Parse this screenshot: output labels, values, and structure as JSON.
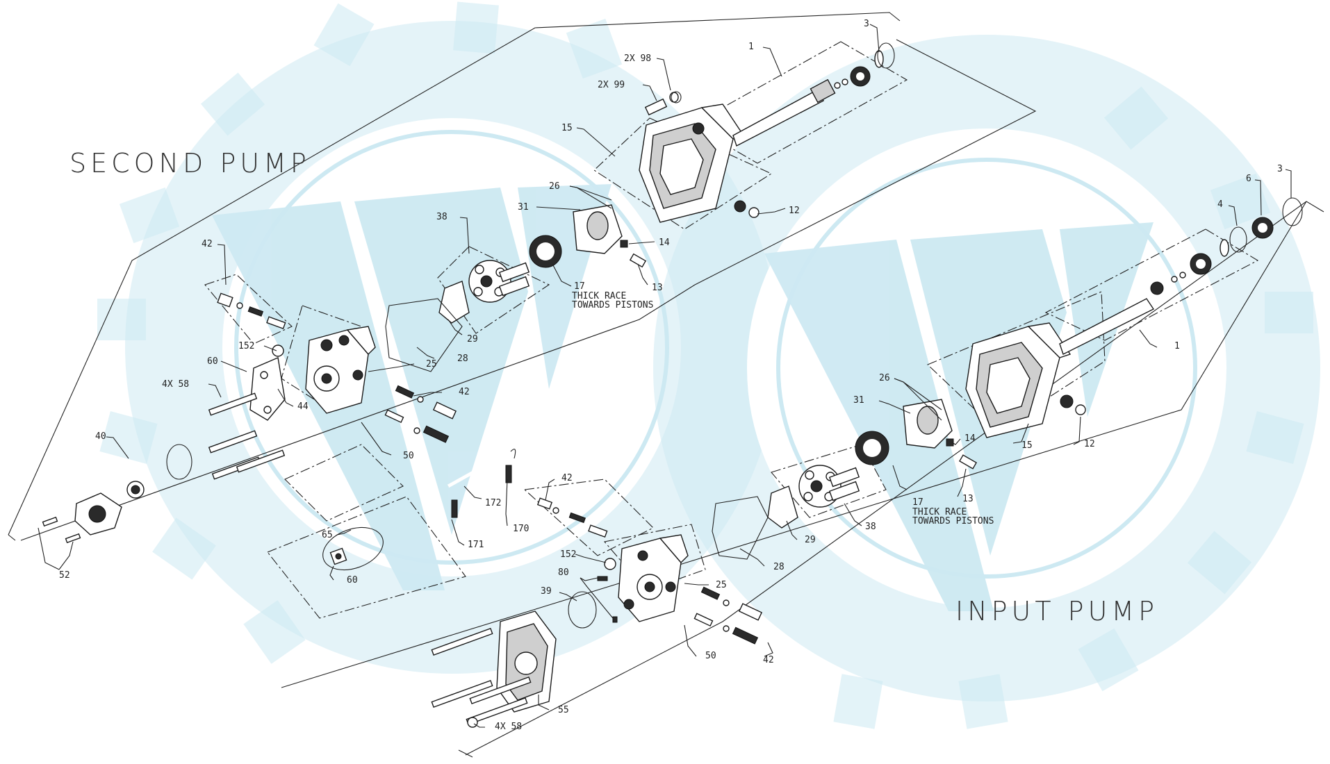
{
  "watermark": {
    "icon": "gear-watermark-icon",
    "color": "#cde9f2"
  },
  "titles": {
    "second_pump": "SECOND PUMP",
    "input_pump": "INPUT PUMP"
  },
  "callouts": [
    {
      "id": "c3a",
      "text": "3"
    },
    {
      "id": "c1a",
      "text": "1"
    },
    {
      "id": "c98",
      "text": "2X 98"
    },
    {
      "id": "c99",
      "text": "2X 99"
    },
    {
      "id": "c15a",
      "text": "15"
    },
    {
      "id": "c26a",
      "text": "26"
    },
    {
      "id": "c31a",
      "text": "31"
    },
    {
      "id": "c12a",
      "text": "12"
    },
    {
      "id": "c38a",
      "text": "38"
    },
    {
      "id": "c14a",
      "text": "14"
    },
    {
      "id": "c13a",
      "text": "13"
    },
    {
      "id": "c17a",
      "text": "17"
    },
    {
      "id": "c42a",
      "text": "42"
    },
    {
      "id": "c29a",
      "text": "29"
    },
    {
      "id": "c152a",
      "text": "152"
    },
    {
      "id": "c60a",
      "text": "60"
    },
    {
      "id": "c25a",
      "text": "25"
    },
    {
      "id": "c28a",
      "text": "28"
    },
    {
      "id": "c58a",
      "text": "4X 58"
    },
    {
      "id": "c42b",
      "text": "42"
    },
    {
      "id": "c44",
      "text": "44"
    },
    {
      "id": "c40",
      "text": "40"
    },
    {
      "id": "c50a",
      "text": "50"
    },
    {
      "id": "c172",
      "text": "172"
    },
    {
      "id": "c170",
      "text": "170"
    },
    {
      "id": "c171",
      "text": "171"
    },
    {
      "id": "c65",
      "text": "65"
    },
    {
      "id": "c60b",
      "text": "60"
    },
    {
      "id": "c52",
      "text": "52"
    },
    {
      "id": "c42c",
      "text": "42"
    },
    {
      "id": "c152b",
      "text": "152"
    },
    {
      "id": "c80",
      "text": "80"
    },
    {
      "id": "c39",
      "text": "39"
    },
    {
      "id": "c25b",
      "text": "25"
    },
    {
      "id": "c50b",
      "text": "50"
    },
    {
      "id": "c42d",
      "text": "42"
    },
    {
      "id": "c55",
      "text": "55"
    },
    {
      "id": "c58b",
      "text": "4X 58"
    },
    {
      "id": "c28b",
      "text": "28"
    },
    {
      "id": "c29b",
      "text": "29"
    },
    {
      "id": "c38b",
      "text": "38"
    },
    {
      "id": "c17b",
      "text": "17"
    },
    {
      "id": "c13b",
      "text": "13"
    },
    {
      "id": "c14b",
      "text": "14"
    },
    {
      "id": "c31b",
      "text": "31"
    },
    {
      "id": "c26b",
      "text": "26"
    },
    {
      "id": "c15b",
      "text": "15"
    },
    {
      "id": "c12b",
      "text": "12"
    },
    {
      "id": "c1b",
      "text": "1"
    },
    {
      "id": "c4",
      "text": "4"
    },
    {
      "id": "c6",
      "text": "6"
    },
    {
      "id": "c3b",
      "text": "3"
    }
  ],
  "notes": {
    "thick_race_a1": "THICK RACE",
    "thick_race_a2": "TOWARDS PISTONS",
    "thick_race_b1": "THICK RACE",
    "thick_race_b2": "TOWARDS PISTONS"
  }
}
